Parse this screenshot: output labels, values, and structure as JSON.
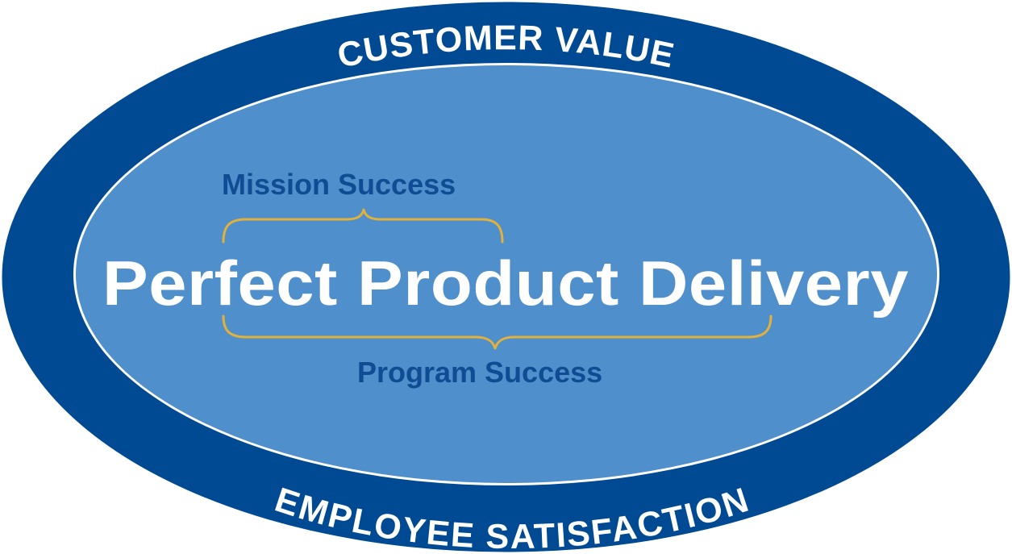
{
  "diagram": {
    "outer_ring": {
      "top_label": "CUSTOMER VALUE",
      "bottom_label": "EMPLOYEE  SATISFACTION"
    },
    "inner_ellipse": {
      "title": "Perfect Product Delivery",
      "upper_brace_label": "Mission Success",
      "lower_brace_label": "Program Success"
    },
    "colors": {
      "outer_ring": "#004a93",
      "inner_fill": "#4f8fcb",
      "inner_border": "#ffffff",
      "title_text": "#ffffff",
      "sub_text": "#0f4c94",
      "brace": "#e2b13c"
    }
  }
}
